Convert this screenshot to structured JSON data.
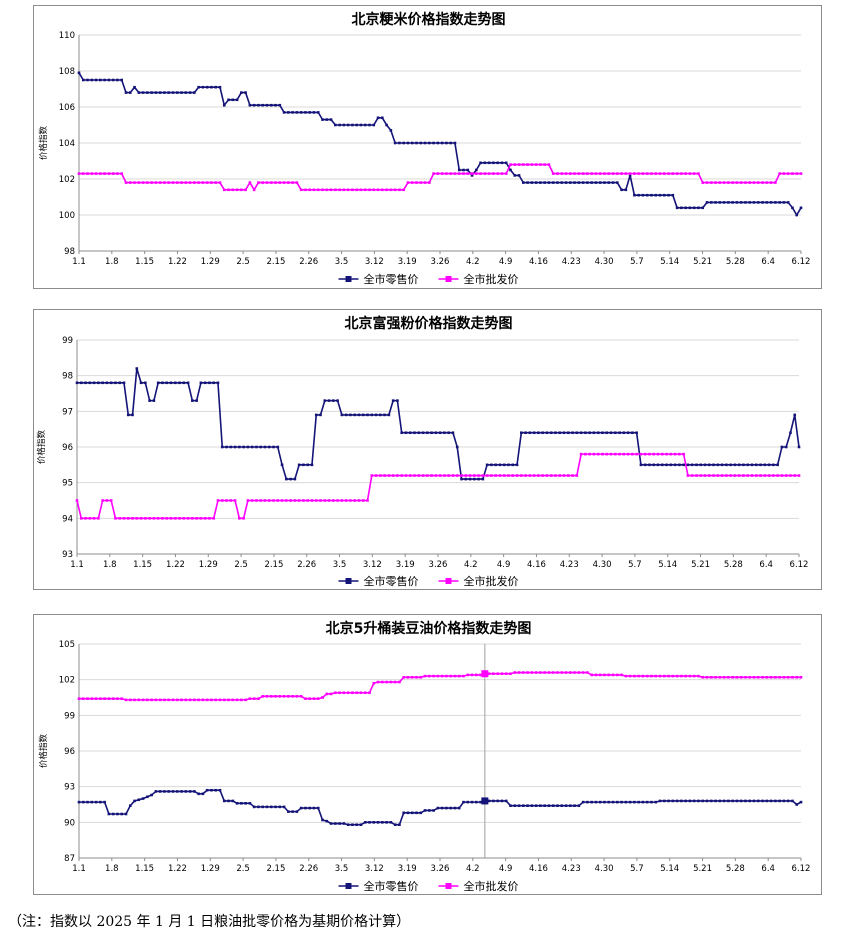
{
  "note": "（注：指数以 2025 年 1 月 1 日粮油批零价格为基期价格计算）",
  "colors": {
    "retail": "#141478",
    "wholesale": "#ff00ff",
    "grid": "#d9d9d9",
    "axis": "#8c8c8c"
  },
  "legend": {
    "retail": "全市零售价",
    "wholesale": "全市批发价"
  },
  "x_tick_labels": [
    "1.1",
    "1.8",
    "1.15",
    "1.22",
    "1.29",
    "2.5",
    "2.15",
    "2.26",
    "3.5",
    "3.12",
    "3.19",
    "3.26",
    "4.2",
    "4.9",
    "4.16",
    "4.23",
    "4.30",
    "5.7",
    "5.14",
    "5.21",
    "5.28",
    "6.4",
    "6.12"
  ],
  "chart_data": [
    {
      "type": "line",
      "title": "北京粳米价格指数走势图",
      "ylabel": "价格指数",
      "ylim": [
        98,
        110
      ],
      "yticks": [
        98,
        100,
        102,
        104,
        106,
        108,
        110
      ],
      "grid": true,
      "legend_position": "bottom",
      "series": [
        {
          "name": "全市零售价",
          "key": "retail",
          "points": [
            [
              0,
              107.9
            ],
            [
              1,
              107.5
            ],
            [
              10,
              107.5
            ],
            [
              11,
              106.8
            ],
            [
              12,
              106.8
            ],
            [
              13,
              107.1
            ],
            [
              14,
              106.8
            ],
            [
              27,
              106.8
            ],
            [
              28,
              107.1
            ],
            [
              33,
              107.1
            ],
            [
              34,
              106.1
            ],
            [
              35,
              106.4
            ],
            [
              37,
              106.4
            ],
            [
              38,
              106.8
            ],
            [
              39,
              106.8
            ],
            [
              40,
              106.1
            ],
            [
              47,
              106.1
            ],
            [
              48,
              105.7
            ],
            [
              56,
              105.7
            ],
            [
              57,
              105.3
            ],
            [
              59,
              105.3
            ],
            [
              60,
              105.0
            ],
            [
              69,
              105.0
            ],
            [
              70,
              105.4
            ],
            [
              71,
              105.4
            ],
            [
              72,
              105.0
            ],
            [
              73,
              104.7
            ],
            [
              74,
              104.0
            ],
            [
              88,
              104.0
            ],
            [
              89,
              102.5
            ],
            [
              91,
              102.5
            ],
            [
              92,
              102.2
            ],
            [
              93,
              102.5
            ],
            [
              94,
              102.9
            ],
            [
              100,
              102.9
            ],
            [
              101,
              102.5
            ],
            [
              102,
              102.2
            ],
            [
              103,
              102.2
            ],
            [
              104,
              101.8
            ],
            [
              126,
              101.8
            ],
            [
              127,
              101.4
            ],
            [
              128,
              101.4
            ],
            [
              129,
              102.2
            ],
            [
              130,
              101.1
            ],
            [
              139,
              101.1
            ],
            [
              140,
              100.4
            ],
            [
              146,
              100.4
            ],
            [
              147,
              100.7
            ],
            [
              166,
              100.7
            ],
            [
              167,
              100.4
            ],
            [
              168,
              100.0
            ],
            [
              169,
              100.4
            ]
          ]
        },
        {
          "name": "全市批发价",
          "key": "wholesale",
          "points": [
            [
              0,
              102.3
            ],
            [
              10,
              102.3
            ],
            [
              11,
              101.8
            ],
            [
              33,
              101.8
            ],
            [
              34,
              101.4
            ],
            [
              39,
              101.4
            ],
            [
              40,
              101.8
            ],
            [
              41,
              101.4
            ],
            [
              42,
              101.8
            ],
            [
              51,
              101.8
            ],
            [
              52,
              101.4
            ],
            [
              76,
              101.4
            ],
            [
              77,
              101.8
            ],
            [
              82,
              101.8
            ],
            [
              83,
              102.3
            ],
            [
              100,
              102.3
            ],
            [
              101,
              102.8
            ],
            [
              110,
              102.8
            ],
            [
              111,
              102.3
            ],
            [
              145,
              102.3
            ],
            [
              146,
              101.8
            ],
            [
              163,
              101.8
            ],
            [
              164,
              102.3
            ],
            [
              169,
              102.3
            ]
          ]
        }
      ]
    },
    {
      "type": "line",
      "title": "北京富强粉价格指数走势图",
      "ylabel": "价格指数",
      "ylim": [
        93,
        99
      ],
      "yticks": [
        93,
        94,
        95,
        96,
        97,
        98,
        99
      ],
      "grid": true,
      "legend_position": "bottom",
      "series": [
        {
          "name": "全市零售价",
          "key": "retail",
          "points": [
            [
              0,
              97.8
            ],
            [
              11,
              97.8
            ],
            [
              12,
              96.9
            ],
            [
              13,
              96.9
            ],
            [
              14,
              98.2
            ],
            [
              15,
              97.8
            ],
            [
              16,
              97.8
            ],
            [
              17,
              97.3
            ],
            [
              18,
              97.3
            ],
            [
              19,
              97.8
            ],
            [
              26,
              97.8
            ],
            [
              27,
              97.3
            ],
            [
              28,
              97.3
            ],
            [
              29,
              97.8
            ],
            [
              33,
              97.8
            ],
            [
              34,
              96.0
            ],
            [
              47,
              96.0
            ],
            [
              48,
              95.5
            ],
            [
              49,
              95.1
            ],
            [
              51,
              95.1
            ],
            [
              52,
              95.5
            ],
            [
              55,
              95.5
            ],
            [
              56,
              96.9
            ],
            [
              57,
              96.9
            ],
            [
              58,
              97.3
            ],
            [
              61,
              97.3
            ],
            [
              62,
              96.9
            ],
            [
              73,
              96.9
            ],
            [
              74,
              97.3
            ],
            [
              75,
              97.3
            ],
            [
              76,
              96.4
            ],
            [
              88,
              96.4
            ],
            [
              89,
              96.0
            ],
            [
              90,
              95.1
            ],
            [
              95,
              95.1
            ],
            [
              96,
              95.5
            ],
            [
              103,
              95.5
            ],
            [
              104,
              96.4
            ],
            [
              131,
              96.4
            ],
            [
              132,
              95.5
            ],
            [
              164,
              95.5
            ],
            [
              165,
              96.0
            ],
            [
              166,
              96.0
            ],
            [
              167,
              96.4
            ],
            [
              168,
              96.9
            ],
            [
              169,
              96.0
            ]
          ]
        },
        {
          "name": "全市批发价",
          "key": "wholesale",
          "points": [
            [
              0,
              94.5
            ],
            [
              1,
              94.0
            ],
            [
              5,
              94.0
            ],
            [
              6,
              94.5
            ],
            [
              8,
              94.5
            ],
            [
              9,
              94.0
            ],
            [
              32,
              94.0
            ],
            [
              33,
              94.5
            ],
            [
              37,
              94.5
            ],
            [
              38,
              94.0
            ],
            [
              39,
              94.0
            ],
            [
              40,
              94.5
            ],
            [
              68,
              94.5
            ],
            [
              69,
              95.2
            ],
            [
              117,
              95.2
            ],
            [
              118,
              95.8
            ],
            [
              142,
              95.8
            ],
            [
              143,
              95.2
            ],
            [
              169,
              95.2
            ]
          ]
        }
      ]
    },
    {
      "type": "line",
      "title": "北京5升桶装豆油价格指数走势图",
      "ylabel": "价格指数",
      "ylim": [
        87,
        105
      ],
      "yticks": [
        87,
        90,
        93,
        96,
        99,
        102,
        105
      ],
      "grid": true,
      "legend_position": "bottom",
      "series": [
        {
          "name": "全市零售价",
          "key": "retail",
          "points": [
            [
              0,
              91.7
            ],
            [
              6,
              91.7
            ],
            [
              7,
              90.7
            ],
            [
              11,
              90.7
            ],
            [
              12,
              91.4
            ],
            [
              13,
              91.8
            ],
            [
              15,
              92.0
            ],
            [
              17,
              92.3
            ],
            [
              18,
              92.6
            ],
            [
              27,
              92.6
            ],
            [
              28,
              92.4
            ],
            [
              29,
              92.4
            ],
            [
              30,
              92.7
            ],
            [
              33,
              92.7
            ],
            [
              34,
              91.8
            ],
            [
              36,
              91.8
            ],
            [
              37,
              91.6
            ],
            [
              40,
              91.6
            ],
            [
              41,
              91.3
            ],
            [
              48,
              91.3
            ],
            [
              49,
              90.9
            ],
            [
              51,
              90.9
            ],
            [
              52,
              91.2
            ],
            [
              56,
              91.2
            ],
            [
              57,
              90.2
            ],
            [
              58,
              90.1
            ],
            [
              59,
              89.9
            ],
            [
              62,
              89.9
            ],
            [
              63,
              89.8
            ],
            [
              66,
              89.8
            ],
            [
              67,
              90.0
            ],
            [
              73,
              90.0
            ],
            [
              74,
              89.8
            ],
            [
              75,
              89.8
            ],
            [
              76,
              90.8
            ],
            [
              80,
              90.8
            ],
            [
              81,
              91.0
            ],
            [
              83,
              91.0
            ],
            [
              84,
              91.2
            ],
            [
              89,
              91.2
            ],
            [
              90,
              91.7
            ],
            [
              94,
              91.7
            ],
            [
              95,
              91.8
            ],
            [
              100,
              91.8
            ],
            [
              101,
              91.4
            ],
            [
              117,
              91.4
            ],
            [
              118,
              91.7
            ],
            [
              135,
              91.7
            ],
            [
              136,
              91.8
            ],
            [
              167,
              91.8
            ],
            [
              168,
              91.5
            ],
            [
              169,
              91.7
            ]
          ]
        },
        {
          "name": "全市批发价",
          "key": "wholesale",
          "points": [
            [
              0,
              100.4
            ],
            [
              10,
              100.4
            ],
            [
              11,
              100.3
            ],
            [
              39,
              100.3
            ],
            [
              40,
              100.4
            ],
            [
              42,
              100.4
            ],
            [
              43,
              100.6
            ],
            [
              52,
              100.6
            ],
            [
              53,
              100.4
            ],
            [
              56,
              100.4
            ],
            [
              57,
              100.5
            ],
            [
              58,
              100.8
            ],
            [
              59,
              100.8
            ],
            [
              60,
              100.9
            ],
            [
              68,
              100.9
            ],
            [
              69,
              101.7
            ],
            [
              70,
              101.8
            ],
            [
              75,
              101.8
            ],
            [
              76,
              102.2
            ],
            [
              80,
              102.2
            ],
            [
              81,
              102.3
            ],
            [
              90,
              102.3
            ],
            [
              91,
              102.4
            ],
            [
              94,
              102.4
            ],
            [
              95,
              102.5
            ],
            [
              101,
              102.5
            ],
            [
              102,
              102.6
            ],
            [
              119,
              102.6
            ],
            [
              120,
              102.4
            ],
            [
              127,
              102.4
            ],
            [
              128,
              102.3
            ],
            [
              145,
              102.3
            ],
            [
              146,
              102.2
            ],
            [
              169,
              102.2
            ]
          ]
        }
      ]
    }
  ]
}
